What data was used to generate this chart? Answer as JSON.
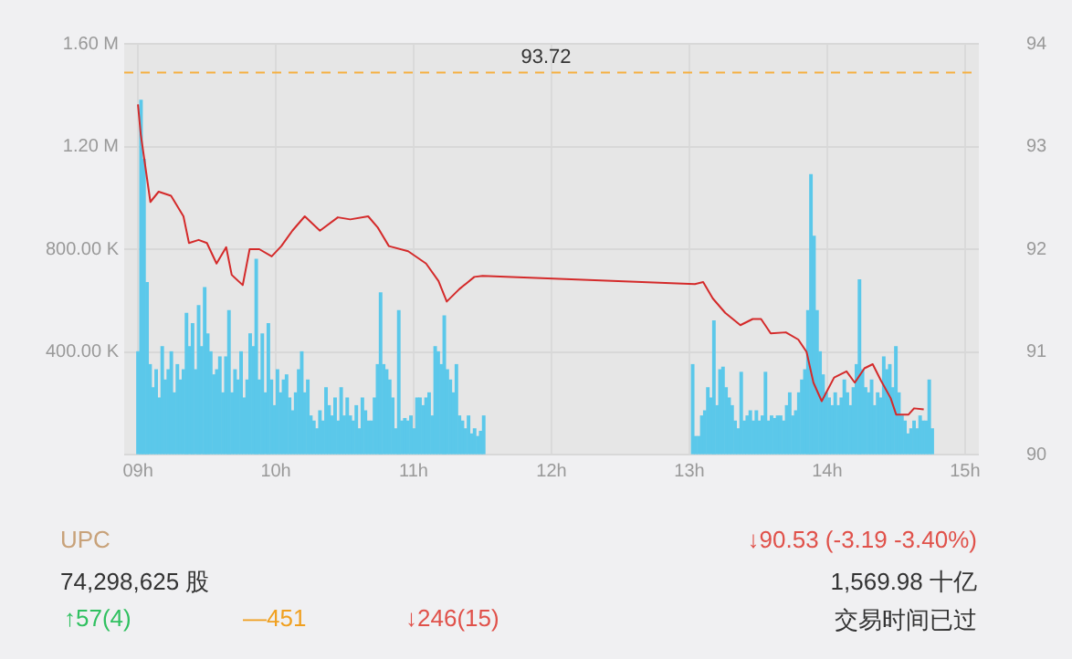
{
  "chart_data": {
    "type": "bar",
    "xlim": [
      8.9,
      15.1
    ],
    "xticks": [
      {
        "value": 9,
        "label": "09h"
      },
      {
        "value": 10,
        "label": "10h"
      },
      {
        "value": 11,
        "label": "11h"
      },
      {
        "value": 12,
        "label": "12h"
      },
      {
        "value": 13,
        "label": "13h"
      },
      {
        "value": 14,
        "label": "14h"
      },
      {
        "value": 15,
        "label": "15h"
      }
    ],
    "ylim": [
      0,
      1600000
    ],
    "yticks": [
      {
        "value": 0,
        "label": null
      },
      {
        "value": 400000,
        "label": "400.00 K"
      },
      {
        "value": 800000,
        "label": "800.00 K"
      },
      {
        "value": 1200000,
        "label": "1.20 M"
      },
      {
        "value": 1600000,
        "label": "1.60 M"
      }
    ],
    "y2lim": [
      90,
      94
    ],
    "y2ticks": [
      90,
      91,
      92,
      93,
      94
    ],
    "grid": true,
    "legend": false,
    "ref_lines": [
      {
        "axis": "y2",
        "value": 93.72,
        "label": "93.72",
        "color": "#f5b041",
        "line_style": "dashed"
      }
    ],
    "annotations": [
      "UPC",
      "↓90.53 (-3.19 -3.40%)",
      "74,298,625 股",
      "1,569.98 十亿",
      "↑57(4)",
      "—451",
      "↓246(15)",
      "交易时间已过"
    ],
    "series": [
      {
        "color": "#5bc8ea",
        "x": [
          9.0,
          9.022,
          9.044,
          9.066,
          9.088,
          9.11,
          9.132,
          9.154,
          9.176,
          9.198,
          9.22,
          9.242,
          9.264,
          9.286,
          9.308,
          9.33,
          9.352,
          9.374,
          9.396,
          9.418,
          9.44,
          9.462,
          9.484,
          9.506,
          9.528,
          9.55,
          9.572,
          9.594,
          9.616,
          9.638,
          9.66,
          9.682,
          9.704,
          9.726,
          9.748,
          9.77,
          9.792,
          9.814,
          9.836,
          9.858,
          9.88,
          9.902,
          9.924,
          9.946,
          9.968,
          9.99,
          10.012,
          10.034,
          10.056,
          10.078,
          10.1,
          10.122,
          10.144,
          10.166,
          10.188,
          10.21,
          10.232,
          10.254,
          10.276,
          10.298,
          10.32,
          10.342,
          10.364,
          10.386,
          10.408,
          10.43,
          10.452,
          10.474,
          10.496,
          10.518,
          10.54,
          10.562,
          10.584,
          10.606,
          10.628,
          10.65,
          10.672,
          10.694,
          10.716,
          10.738,
          10.76,
          10.782,
          10.804,
          10.826,
          10.848,
          10.87,
          10.892,
          10.914,
          10.936,
          10.958,
          10.98,
          11.002,
          11.024,
          11.046,
          11.068,
          11.09,
          11.112,
          11.134,
          11.156,
          11.178,
          11.2,
          11.222,
          11.244,
          11.266,
          11.288,
          11.31,
          11.332,
          11.354,
          11.376,
          11.398,
          11.42,
          11.442,
          11.464,
          11.486,
          11.508,
          13.024,
          13.046,
          13.068,
          13.09,
          13.112,
          13.134,
          13.156,
          13.178,
          13.2,
          13.222,
          13.244,
          13.266,
          13.288,
          13.31,
          13.332,
          13.354,
          13.376,
          13.398,
          13.42,
          13.442,
          13.464,
          13.486,
          13.508,
          13.53,
          13.552,
          13.574,
          13.596,
          13.618,
          13.64,
          13.662,
          13.684,
          13.706,
          13.728,
          13.75,
          13.772,
          13.794,
          13.816,
          13.838,
          13.86,
          13.882,
          13.904,
          13.926,
          13.948,
          13.97,
          13.992,
          14.014,
          14.036,
          14.058,
          14.08,
          14.102,
          14.124,
          14.146,
          14.168,
          14.19,
          14.212,
          14.234,
          14.256,
          14.278,
          14.3,
          14.322,
          14.344,
          14.366,
          14.388,
          14.41,
          14.432,
          14.454,
          14.476,
          14.498,
          14.52,
          14.542,
          14.564,
          14.586,
          14.608,
          14.63,
          14.652,
          14.674,
          14.696,
          14.718,
          14.74,
          14.762
        ],
        "values": [
          400000,
          1380000,
          1150000,
          670000,
          350000,
          260000,
          330000,
          220000,
          420000,
          290000,
          330000,
          400000,
          240000,
          350000,
          290000,
          330000,
          550000,
          420000,
          510000,
          330000,
          580000,
          420000,
          650000,
          470000,
          400000,
          310000,
          330000,
          380000,
          240000,
          380000,
          560000,
          240000,
          330000,
          290000,
          400000,
          220000,
          290000,
          470000,
          420000,
          760000,
          290000,
          470000,
          240000,
          510000,
          290000,
          190000,
          330000,
          240000,
          290000,
          310000,
          220000,
          170000,
          240000,
          330000,
          400000,
          240000,
          290000,
          150000,
          130000,
          100000,
          170000,
          130000,
          260000,
          190000,
          150000,
          220000,
          130000,
          260000,
          150000,
          220000,
          150000,
          130000,
          190000,
          100000,
          220000,
          170000,
          130000,
          130000,
          220000,
          350000,
          630000,
          350000,
          330000,
          290000,
          220000,
          100000,
          560000,
          130000,
          140000,
          130000,
          150000,
          100000,
          220000,
          220000,
          190000,
          220000,
          240000,
          150000,
          420000,
          400000,
          350000,
          540000,
          330000,
          290000,
          240000,
          350000,
          150000,
          130000,
          100000,
          150000,
          80000,
          100000,
          70000,
          90000,
          150000,
          350000,
          70000,
          70000,
          150000,
          170000,
          260000,
          220000,
          520000,
          190000,
          330000,
          340000,
          260000,
          220000,
          190000,
          130000,
          100000,
          320000,
          130000,
          150000,
          170000,
          130000,
          170000,
          130000,
          150000,
          320000,
          130000,
          150000,
          140000,
          150000,
          150000,
          130000,
          190000,
          240000,
          150000,
          170000,
          240000,
          290000,
          330000,
          560000,
          1090000,
          850000,
          560000,
          400000,
          310000,
          240000,
          220000,
          190000,
          240000,
          190000,
          220000,
          290000,
          240000,
          190000,
          260000,
          350000,
          680000,
          330000,
          260000,
          240000,
          290000,
          190000,
          240000,
          220000,
          380000,
          330000,
          350000,
          260000,
          420000,
          240000,
          150000,
          130000,
          80000,
          100000,
          130000,
          100000,
          150000,
          130000,
          130000,
          290000,
          100000
        ]
      },
      {
        "type": "line",
        "axis": "y2",
        "color": "#d42a2a",
        "x": [
          9.0,
          9.02,
          9.09,
          9.15,
          9.24,
          9.33,
          9.37,
          9.44,
          9.5,
          9.57,
          9.64,
          9.68,
          9.76,
          9.81,
          9.88,
          9.97,
          10.04,
          10.12,
          10.21,
          10.32,
          10.45,
          10.54,
          10.67,
          10.74,
          10.82,
          10.96,
          11.09,
          11.18,
          11.24,
          11.33,
          11.44,
          11.5,
          13.04,
          13.1,
          13.17,
          13.26,
          13.37,
          13.46,
          13.52,
          13.59,
          13.7,
          13.79,
          13.85,
          13.9,
          13.96,
          14.05,
          14.14,
          14.2,
          14.27,
          14.33,
          14.39,
          14.46,
          14.5,
          14.59,
          14.63,
          14.7
        ],
        "values": [
          93.41,
          93.12,
          92.46,
          92.56,
          92.52,
          92.32,
          92.06,
          92.09,
          92.06,
          91.86,
          92.02,
          91.75,
          91.65,
          92.0,
          92.0,
          91.93,
          92.03,
          92.18,
          92.32,
          92.18,
          92.31,
          92.29,
          92.32,
          92.21,
          92.03,
          91.98,
          91.86,
          91.69,
          91.49,
          91.61,
          91.73,
          91.74,
          91.66,
          91.68,
          91.52,
          91.38,
          91.26,
          91.32,
          91.32,
          91.18,
          91.19,
          91.12,
          91.0,
          90.7,
          90.52,
          90.75,
          90.81,
          90.7,
          90.84,
          90.88,
          90.72,
          90.55,
          90.39,
          90.39,
          90.45,
          90.44
        ]
      }
    ]
  }
}
